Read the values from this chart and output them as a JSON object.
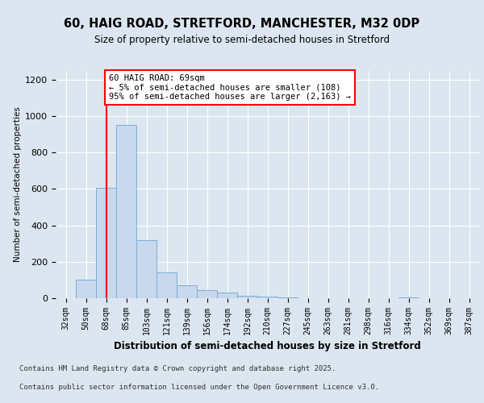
{
  "title1": "60, HAIG ROAD, STRETFORD, MANCHESTER, M32 0DP",
  "title2": "Size of property relative to semi-detached houses in Stretford",
  "xlabel": "Distribution of semi-detached houses by size in Stretford",
  "ylabel": "Number of semi-detached properties",
  "bins": [
    "32sqm",
    "50sqm",
    "68sqm",
    "85sqm",
    "103sqm",
    "121sqm",
    "139sqm",
    "156sqm",
    "174sqm",
    "192sqm",
    "210sqm",
    "227sqm",
    "245sqm",
    "263sqm",
    "281sqm",
    "298sqm",
    "316sqm",
    "334sqm",
    "352sqm",
    "369sqm",
    "387sqm"
  ],
  "values": [
    2,
    100,
    605,
    950,
    320,
    140,
    70,
    45,
    30,
    15,
    8,
    3,
    2,
    1,
    1,
    0,
    0,
    5,
    0,
    0,
    0
  ],
  "bar_color": "#c8d9ee",
  "bar_edge_color": "#7aadd4",
  "red_line_x": 2,
  "annotation_title": "60 HAIG ROAD: 69sqm",
  "annotation_line1": "← 5% of semi-detached houses are smaller (108)",
  "annotation_line2": "95% of semi-detached houses are larger (2,163) →",
  "ylim": [
    0,
    1250
  ],
  "yticks": [
    0,
    200,
    400,
    600,
    800,
    1000,
    1200
  ],
  "footer1": "Contains HM Land Registry data © Crown copyright and database right 2025.",
  "footer2": "Contains public sector information licensed under the Open Government Licence v3.0.",
  "background_color": "#dce6f0"
}
